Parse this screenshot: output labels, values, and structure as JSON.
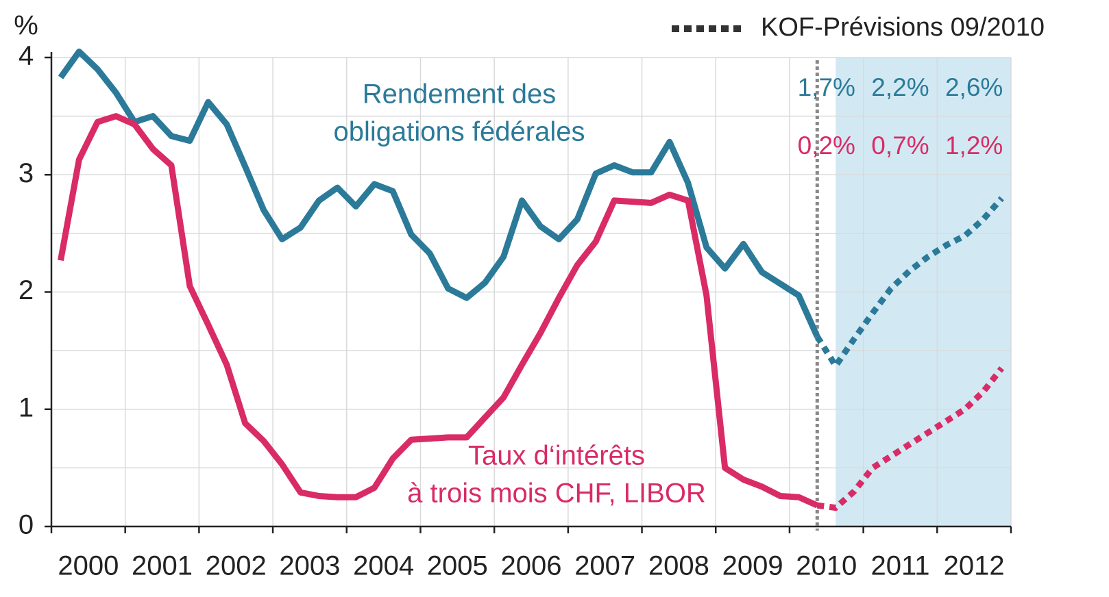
{
  "chart_data": {
    "type": "line",
    "y_label": "%",
    "legend": {
      "text": "KOF-Prévisions 09/2010",
      "color": "#333333",
      "corner": "top-right"
    },
    "x": [
      2000.125,
      2000.375,
      2000.625,
      2000.875,
      2001.125,
      2001.375,
      2001.625,
      2001.875,
      2002.125,
      2002.375,
      2002.625,
      2002.875,
      2003.125,
      2003.375,
      2003.625,
      2003.875,
      2004.125,
      2004.375,
      2004.625,
      2004.875,
      2005.125,
      2005.375,
      2005.625,
      2005.875,
      2006.125,
      2006.375,
      2006.625,
      2006.875,
      2007.125,
      2007.375,
      2007.625,
      2007.875,
      2008.125,
      2008.375,
      2008.625,
      2008.875,
      2009.125,
      2009.375,
      2009.625,
      2009.875,
      2010.125,
      2010.375
    ],
    "forecast_x": [
      2010.375,
      2010.625,
      2010.875,
      2011.125,
      2011.375,
      2011.625,
      2011.875,
      2012.125,
      2012.375,
      2012.625,
      2012.875
    ],
    "forecast_start": 2010.375,
    "forecast_shade": [
      2010.625,
      2013
    ],
    "shade_color": "#d2e9f3",
    "series": [
      {
        "label": [
          "Rendement des",
          "obligations fédérales"
        ],
        "color": "#2b7a99",
        "values": [
          3.83,
          4.05,
          3.9,
          3.7,
          3.45,
          3.5,
          3.33,
          3.29,
          3.62,
          3.43,
          3.07,
          2.7,
          2.45,
          2.55,
          2.78,
          2.89,
          2.73,
          2.92,
          2.86,
          2.49,
          2.33,
          2.03,
          1.95,
          2.08,
          2.3,
          2.78,
          2.56,
          2.45,
          2.62,
          3.01,
          3.08,
          3.02,
          3.02,
          3.28,
          2.93,
          2.38,
          2.2,
          2.41,
          2.17,
          2.07,
          1.97,
          1.62
        ],
        "forecast_values": [
          1.62,
          1.37,
          1.6,
          1.82,
          2.03,
          2.18,
          2.3,
          2.4,
          2.48,
          2.62,
          2.8
        ],
        "forecast_averages": [
          1.7,
          2.2,
          2.6
        ],
        "forecast_average_labels": [
          "1,7%",
          "2,2%",
          "2,6%"
        ]
      },
      {
        "label": [
          "Taux d‘intérêts",
          "à trois mois CHF, LIBOR"
        ],
        "color": "#d92b66",
        "values": [
          2.27,
          3.13,
          3.45,
          3.5,
          3.43,
          3.22,
          3.08,
          2.05,
          1.72,
          1.38,
          0.88,
          0.73,
          0.53,
          0.29,
          0.26,
          0.25,
          0.25,
          0.33,
          0.58,
          0.74,
          0.75,
          0.76,
          0.76,
          0.93,
          1.1,
          1.38,
          1.65,
          1.95,
          2.23,
          2.43,
          2.78,
          2.77,
          2.76,
          2.83,
          2.78,
          1.97,
          0.5,
          0.4,
          0.34,
          0.26,
          0.25,
          0.18
        ],
        "forecast_values": [
          0.18,
          0.16,
          0.3,
          0.5,
          0.6,
          0.7,
          0.8,
          0.9,
          1.0,
          1.15,
          1.35
        ],
        "forecast_averages": [
          0.2,
          0.7,
          1.2
        ],
        "forecast_average_labels": [
          "0,2%",
          "0,7%",
          "1,2%"
        ]
      }
    ],
    "forecast_average_years": [
      2010,
      2011,
      2012
    ],
    "xlim": [
      2000,
      2013
    ],
    "xticks": [
      2000,
      2001,
      2002,
      2003,
      2004,
      2005,
      2006,
      2007,
      2008,
      2009,
      2010,
      2011,
      2012
    ],
    "ylim": [
      0,
      4
    ],
    "yticks": [
      0,
      1,
      2,
      3,
      4
    ],
    "grid": true,
    "minor_grid": true
  }
}
